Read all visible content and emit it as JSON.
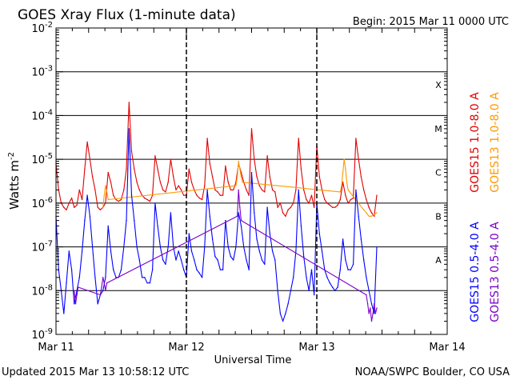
{
  "chart_data": {
    "type": "line",
    "title": "GOES Xray Flux (1-minute data)",
    "begin_label": "Begin:  2015 Mar 11 0000 UTC",
    "ylabel": "Watts m",
    "ylabel_sup": "-2",
    "xlabel": "Universal Time",
    "y_scale": "log",
    "ylim": [
      1e-09,
      0.01
    ],
    "xlim": [
      0,
      3
    ],
    "x_ticks": [
      {
        "value": 0,
        "label": "Mar 11"
      },
      {
        "value": 1,
        "label": "Mar 12"
      },
      {
        "value": 2,
        "label": "Mar 13"
      },
      {
        "value": 3,
        "label": "Mar 14"
      }
    ],
    "y_ticks": [
      {
        "value": 1e-09,
        "base": "10",
        "exp": "-9"
      },
      {
        "value": 1e-08,
        "base": "10",
        "exp": "-8"
      },
      {
        "value": 1e-07,
        "base": "10",
        "exp": "-7"
      },
      {
        "value": 1e-06,
        "base": "10",
        "exp": "-6"
      },
      {
        "value": 1e-05,
        "base": "10",
        "exp": "-5"
      },
      {
        "value": 0.0001,
        "base": "10",
        "exp": "-4"
      },
      {
        "value": 0.001,
        "base": "10",
        "exp": "-3"
      },
      {
        "value": 0.01,
        "base": "10",
        "exp": "-2"
      }
    ],
    "flare_classes": [
      {
        "label": "X",
        "value": 0.0005
      },
      {
        "label": "M",
        "value": 5e-05
      },
      {
        "label": "C",
        "value": 5e-06
      },
      {
        "label": "B",
        "value": 5e-07
      },
      {
        "label": "A",
        "value": 5e-08
      }
    ],
    "grid": true,
    "legend": [
      {
        "label": "GOES15 1.0-8.0 A",
        "color": "#e00000",
        "pos": "upper-left"
      },
      {
        "label": "GOES13 1.0-8.0 A",
        "color": "#ff9900",
        "pos": "upper-right"
      },
      {
        "label": "GOES15 0.5-4.0 A",
        "color": "#0000ff",
        "pos": "lower-left"
      },
      {
        "label": "GOES13 0.5-4.0 A",
        "color": "#7a00c8",
        "pos": "lower-right"
      }
    ],
    "series": [
      {
        "name": "GOES15 1.0-8.0 A",
        "color": "#e00000",
        "x": [
          0,
          0.02,
          0.04,
          0.06,
          0.08,
          0.1,
          0.12,
          0.14,
          0.16,
          0.18,
          0.2,
          0.22,
          0.24,
          0.26,
          0.28,
          0.3,
          0.32,
          0.34,
          0.36,
          0.38,
          0.4,
          0.42,
          0.44,
          0.46,
          0.48,
          0.5,
          0.52,
          0.54,
          0.56,
          0.58,
          0.6,
          0.62,
          0.64,
          0.66,
          0.68,
          0.7,
          0.72,
          0.74,
          0.76,
          0.78,
          0.8,
          0.82,
          0.84,
          0.86,
          0.88,
          0.9,
          0.92,
          0.94,
          0.96,
          0.98,
          1.0,
          1.02,
          1.04,
          1.06,
          1.08,
          1.1,
          1.12,
          1.14,
          1.16,
          1.18,
          1.2,
          1.22,
          1.24,
          1.26,
          1.28,
          1.3,
          1.32,
          1.34,
          1.36,
          1.38,
          1.4,
          1.42,
          1.44,
          1.46,
          1.48,
          1.5,
          1.52,
          1.54,
          1.56,
          1.58,
          1.6,
          1.62,
          1.64,
          1.66,
          1.68,
          1.7,
          1.72,
          1.74,
          1.76,
          1.78,
          1.8,
          1.82,
          1.84,
          1.86,
          1.88,
          1.9,
          1.92,
          1.94,
          1.96,
          1.98,
          2.0,
          2.02,
          2.04,
          2.06,
          2.08,
          2.1,
          2.12,
          2.14,
          2.16,
          2.18,
          2.2,
          2.22,
          2.24,
          2.26,
          2.28,
          2.3,
          2.32,
          2.34,
          2.36,
          2.38,
          2.4,
          2.42,
          2.44,
          2.46
        ],
        "values": [
          8e-06,
          2e-06,
          1e-06,
          8e-07,
          7e-07,
          1e-06,
          1.3e-06,
          8e-07,
          9e-07,
          2e-06,
          1.2e-06,
          6e-06,
          2.5e-05,
          1e-05,
          4e-06,
          2e-06,
          8e-07,
          7e-07,
          8e-07,
          1e-06,
          5e-06,
          3e-06,
          1.5e-06,
          1.2e-06,
          1.1e-06,
          1.2e-06,
          2e-06,
          6e-06,
          0.0002,
          1.5e-05,
          6e-06,
          3e-06,
          2e-06,
          1.5e-06,
          1.3e-06,
          1.2e-06,
          1.1e-06,
          1.5e-06,
          1.2e-05,
          6e-06,
          3e-06,
          2e-06,
          1.8e-06,
          3e-06,
          1e-05,
          4e-06,
          2e-06,
          2.5e-06,
          2e-06,
          1.5e-06,
          1.5e-06,
          6e-06,
          3e-06,
          2e-06,
          1.5e-06,
          1.3e-06,
          1.2e-06,
          2.5e-06,
          3e-05,
          8e-06,
          4e-06,
          2e-06,
          1.8e-06,
          1.5e-06,
          1.5e-06,
          7e-06,
          3e-06,
          2e-06,
          2e-06,
          3e-06,
          8e-06,
          5e-06,
          3e-06,
          2e-06,
          1.5e-06,
          5e-05,
          1e-05,
          4e-06,
          2.5e-06,
          2e-06,
          1.8e-06,
          1.2e-05,
          4e-06,
          2e-06,
          1.8e-06,
          8e-07,
          1e-06,
          6e-07,
          5e-07,
          7e-07,
          8e-07,
          1e-06,
          2e-06,
          3e-05,
          6e-06,
          2e-06,
          1.2e-06,
          1e-06,
          1.5e-06,
          8e-07,
          2e-05,
          4e-06,
          2e-06,
          1.2e-06,
          1e-06,
          9e-07,
          8e-07,
          8e-07,
          9e-07,
          1.2e-06,
          3e-06,
          1.5e-06,
          1e-06,
          1.2e-06,
          1.3e-06,
          3e-05,
          1e-05,
          4e-06,
          2e-06,
          1.2e-06,
          8e-07,
          6e-07,
          5e-07,
          1.5e-06
        ]
      },
      {
        "name": "GOES13 1.0-8.0 A",
        "color": "#ff9900",
        "x": [
          0.36,
          0.37,
          0.38,
          0.39,
          0.4,
          1.38,
          1.39,
          1.4,
          1.41,
          1.42,
          1.43,
          2.18,
          2.19,
          2.2,
          2.21,
          2.22,
          2.23,
          2.24,
          2.36,
          2.38,
          2.4,
          2.42,
          2.44,
          2.46
        ],
        "values": [
          8e-07,
          1.5e-06,
          2.5e-06,
          1.8e-06,
          1.2e-06,
          2.5e-06,
          4e-06,
          9e-06,
          6e-06,
          4e-06,
          3e-06,
          1.8e-06,
          2.5e-06,
          5e-06,
          1e-05,
          6e-06,
          3e-06,
          2e-06,
          7e-07,
          6e-07,
          5e-07,
          5e-07,
          5.5e-07,
          6e-07
        ]
      },
      {
        "name": "GOES15 0.5-4.0 A",
        "color": "#0000ff",
        "x": [
          0,
          0.02,
          0.04,
          0.06,
          0.08,
          0.1,
          0.12,
          0.14,
          0.16,
          0.18,
          0.2,
          0.22,
          0.24,
          0.26,
          0.28,
          0.3,
          0.32,
          0.34,
          0.36,
          0.38,
          0.4,
          0.42,
          0.44,
          0.46,
          0.48,
          0.5,
          0.52,
          0.54,
          0.56,
          0.58,
          0.6,
          0.62,
          0.64,
          0.66,
          0.68,
          0.7,
          0.72,
          0.74,
          0.76,
          0.78,
          0.8,
          0.82,
          0.84,
          0.86,
          0.88,
          0.9,
          0.92,
          0.94,
          0.96,
          0.98,
          1.0,
          1.02,
          1.04,
          1.06,
          1.08,
          1.1,
          1.12,
          1.14,
          1.16,
          1.18,
          1.2,
          1.22,
          1.24,
          1.26,
          1.28,
          1.3,
          1.32,
          1.34,
          1.36,
          1.38,
          1.4,
          1.42,
          1.44,
          1.46,
          1.48,
          1.5,
          1.52,
          1.54,
          1.56,
          1.58,
          1.6,
          1.62,
          1.64,
          1.66,
          1.68,
          1.7,
          1.72,
          1.74,
          1.76,
          1.78,
          1.8,
          1.82,
          1.84,
          1.86,
          1.88,
          1.9,
          1.92,
          1.94,
          1.96,
          1.98,
          2.0,
          2.02,
          2.04,
          2.06,
          2.08,
          2.1,
          2.12,
          2.14,
          2.16,
          2.18,
          2.2,
          2.22,
          2.24,
          2.26,
          2.28,
          2.3,
          2.32,
          2.34,
          2.36,
          2.38,
          2.4,
          2.42,
          2.44,
          2.46
        ],
        "values": [
          5e-07,
          3e-08,
          1e-08,
          3e-09,
          1.5e-08,
          8e-08,
          3e-08,
          5e-09,
          1e-08,
          2e-08,
          8e-08,
          4e-07,
          1.5e-06,
          5e-07,
          1e-07,
          2e-08,
          5e-09,
          8e-09,
          1e-08,
          2e-08,
          3e-07,
          8e-08,
          3e-08,
          2e-08,
          2e-08,
          3e-08,
          1e-07,
          4e-07,
          5e-05,
          1.5e-06,
          4e-07,
          1e-07,
          5e-08,
          2e-08,
          2e-08,
          1.5e-08,
          1.5e-08,
          3e-08,
          1e-06,
          3e-07,
          1e-07,
          5e-08,
          4e-08,
          1e-07,
          6e-07,
          1e-07,
          5e-08,
          8e-08,
          5e-08,
          3e-08,
          2e-08,
          2e-07,
          8e-08,
          5e-08,
          3e-08,
          2.5e-08,
          2e-08,
          1e-07,
          2e-06,
          5e-07,
          1.5e-07,
          6e-08,
          5e-08,
          3e-08,
          3e-08,
          4e-07,
          1e-07,
          6e-08,
          5e-08,
          1e-07,
          6e-07,
          3e-07,
          1e-07,
          5e-08,
          3e-08,
          5e-06,
          6e-07,
          1.5e-07,
          8e-08,
          5e-08,
          4e-08,
          8e-07,
          2e-07,
          8e-08,
          5e-08,
          1e-08,
          3e-09,
          2e-09,
          3e-09,
          5e-09,
          1e-08,
          2e-08,
          8e-08,
          2e-06,
          3e-07,
          6e-08,
          2e-08,
          1e-08,
          3e-08,
          8e-09,
          1e-06,
          2e-07,
          8e-08,
          3e-08,
          2e-08,
          1.5e-08,
          1.2e-08,
          1e-08,
          1.2e-08,
          3e-08,
          1.5e-07,
          5e-08,
          3e-08,
          3e-08,
          4e-08,
          2e-06,
          5e-07,
          1.5e-07,
          5e-08,
          2e-08,
          1e-08,
          5e-09,
          3e-09,
          1e-07
        ]
      },
      {
        "name": "GOES13 0.5-4.0 A",
        "color": "#7a00c8",
        "x": [
          0.14,
          0.15,
          0.16,
          0.17,
          0.34,
          0.35,
          0.36,
          0.37,
          0.38,
          0.39,
          1.39,
          1.4,
          1.41,
          1.42,
          2.38,
          2.39,
          2.4,
          2.41,
          2.42,
          2.43,
          2.44,
          2.45,
          2.46
        ],
        "values": [
          1e-08,
          5e-09,
          8e-09,
          1.2e-08,
          8e-09,
          1.2e-08,
          2e-08,
          1.5e-08,
          1e-08,
          1.5e-08,
          5e-07,
          2e-06,
          8e-07,
          4e-07,
          8e-09,
          5e-09,
          3e-09,
          4e-09,
          2e-09,
          3e-09,
          5e-09,
          3e-09,
          4e-09
        ]
      }
    ]
  },
  "footer": {
    "updated": "Updated 2015 Mar 13 10:58:12 UTC",
    "credit": "NOAA/SWPC Boulder, CO USA"
  }
}
